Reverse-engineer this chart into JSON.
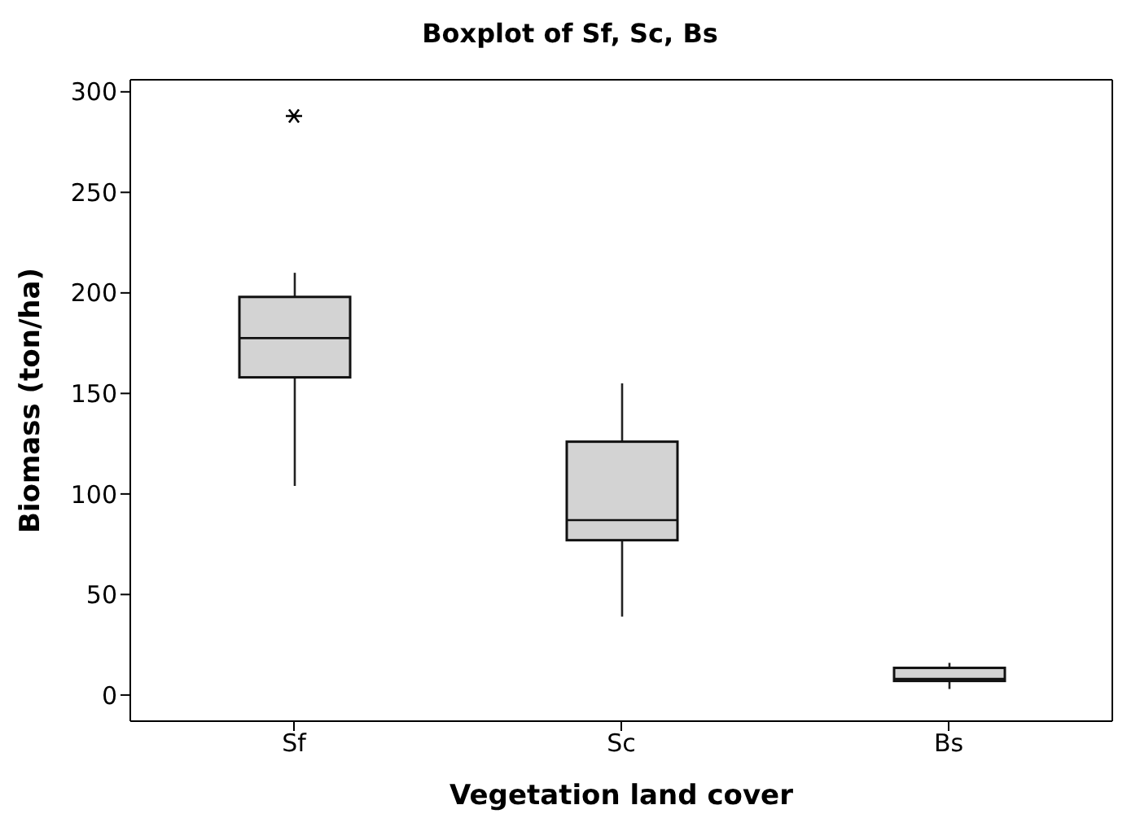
{
  "chart_data": {
    "type": "box",
    "title": "Boxplot of Sf, Sc, Bs",
    "xlabel": "Vegetation land cover",
    "ylabel": "Biomass (ton/ha)",
    "categories": [
      "Sf",
      "Sc",
      "Bs"
    ],
    "color": "#d3d3d3",
    "boxes": [
      {
        "low": 104,
        "q1": 158,
        "median": 177.5,
        "q3": 198,
        "high": 210,
        "outliers": [
          288
        ]
      },
      {
        "low": 39,
        "q1": 77,
        "median": 87,
        "q3": 126,
        "high": 155
      },
      {
        "low": 3,
        "q1": 7,
        "median": 8,
        "q3": 13.5,
        "high": 16
      }
    ],
    "ylim": [
      -13,
      306
    ],
    "yticks": [
      0,
      50,
      100,
      150,
      200,
      250,
      300
    ],
    "grid": false
  }
}
